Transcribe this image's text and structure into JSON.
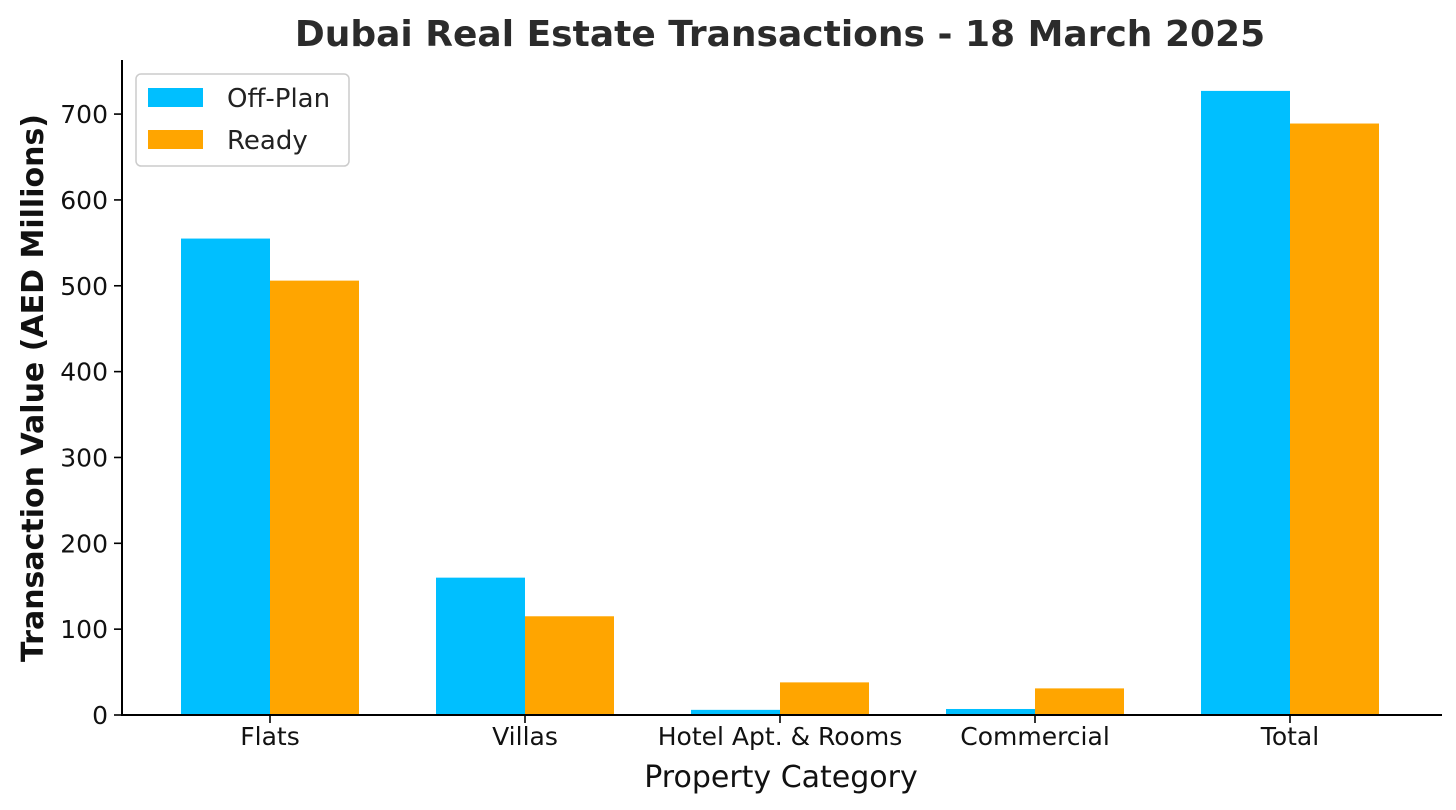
{
  "chart_data": {
    "type": "bar",
    "title": "Dubai Real Estate Transactions - 18 March 2025",
    "xlabel": "Property Category",
    "ylabel": "Transaction Value (AED Millions)",
    "categories": [
      "Flats",
      "Villas",
      "Hotel Apt. & Rooms",
      "Commercial",
      "Total"
    ],
    "series": [
      {
        "name": "Off-Plan",
        "color": "#00BFFF",
        "values": [
          555,
          160,
          6,
          7,
          727
        ]
      },
      {
        "name": "Ready",
        "color": "#FFA500",
        "values": [
          506,
          115,
          38,
          31,
          689
        ]
      }
    ],
    "ylim": [
      0,
      763
    ],
    "yticks": [
      0,
      100,
      200,
      300,
      400,
      500,
      600,
      700
    ],
    "legend_position": "top-left",
    "grid": false
  }
}
